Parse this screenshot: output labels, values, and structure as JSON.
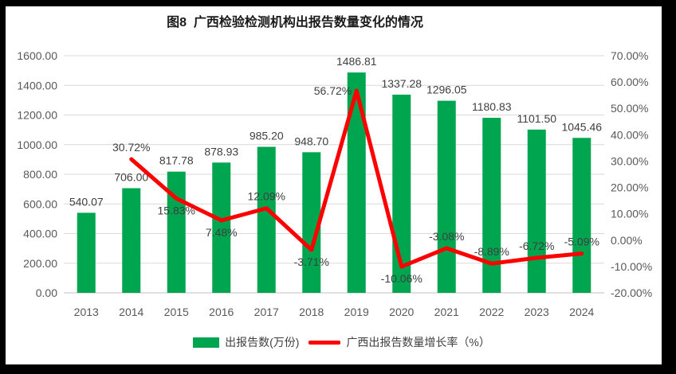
{
  "title": "图8  广西检验检测机构出报告数量变化的情况",
  "legend": [
    {
      "label": "出报告数(万份)",
      "type": "bar",
      "color": "#00A550"
    },
    {
      "label": "广西出报告数量增长率（%）",
      "type": "line",
      "color": "#FF0000"
    }
  ],
  "chart_data": {
    "type": "bar+line combo",
    "title": "图8  广西检验检测机构出报告数量变化的情况",
    "categories": [
      "2013",
      "2014",
      "2015",
      "2016",
      "2017",
      "2018",
      "2019",
      "2020",
      "2021",
      "2022",
      "2023",
      "2024"
    ],
    "series": [
      {
        "name": "出报告数(万份)",
        "type": "bar",
        "axis": "left",
        "color": "#00A550",
        "values": [
          540.07,
          706.0,
          817.78,
          878.93,
          985.2,
          948.7,
          1486.81,
          1337.28,
          1296.05,
          1180.83,
          1101.5,
          1045.46
        ],
        "labels": [
          "540.07",
          "706.00",
          "817.78",
          "878.93",
          "985.20",
          "948.70",
          "1486.81",
          "1337.28",
          "1296.05",
          "1180.83",
          "1101.50",
          "1045.46"
        ]
      },
      {
        "name": "广西出报告数量增长率（%）",
        "type": "line",
        "axis": "right",
        "color": "#FF0000",
        "values": [
          null,
          30.72,
          15.83,
          7.48,
          12.09,
          -3.71,
          56.72,
          -10.06,
          -3.08,
          -8.89,
          -6.72,
          -5.09
        ],
        "labels": [
          null,
          "30.72%",
          "15.83%",
          "7.48%",
          "12.09%",
          "-3.71%",
          "56.72%",
          "-10.06%",
          "-3.08%",
          "-8.89%",
          "-6.72%",
          "-5.09%"
        ],
        "label_positions": [
          null,
          "above",
          "below",
          "below",
          "above",
          "below",
          "left",
          "below",
          "above",
          "above",
          "above",
          "above"
        ]
      }
    ],
    "left_axis": {
      "min": 0,
      "max": 1600,
      "step": 200,
      "tick_labels": [
        "0.00",
        "200.00",
        "400.00",
        "600.00",
        "800.00",
        "1000.00",
        "1200.00",
        "1400.00",
        "1600.00"
      ]
    },
    "right_axis": {
      "min": -20,
      "max": 70,
      "step": 10,
      "tick_labels": [
        "-20.00%",
        "-10.00%",
        "0.00%",
        "10.00%",
        "20.00%",
        "30.00%",
        "40.00%",
        "50.00%",
        "60.00%",
        "70.00%"
      ]
    },
    "grid": true,
    "gridline_color": "#d9d9d9",
    "legend_position": "bottom"
  }
}
